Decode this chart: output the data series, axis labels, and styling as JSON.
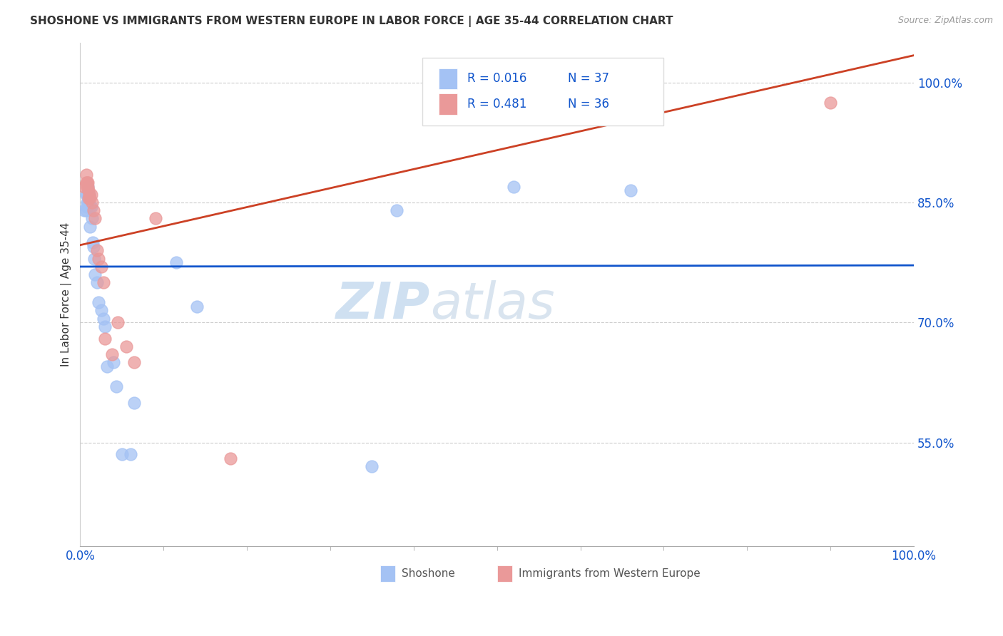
{
  "title": "SHOSHONE VS IMMIGRANTS FROM WESTERN EUROPE IN LABOR FORCE | AGE 35-44 CORRELATION CHART",
  "source": "Source: ZipAtlas.com",
  "ylabel": "In Labor Force | Age 35-44",
  "xlim": [
    0.0,
    1.0
  ],
  "ylim": [
    0.42,
    1.05
  ],
  "yticks": [
    0.55,
    0.7,
    0.85,
    1.0
  ],
  "ytick_labels": [
    "55.0%",
    "70.0%",
    "85.0%",
    "100.0%"
  ],
  "xtick_left": "0.0%",
  "xtick_right": "100.0%",
  "watermark_zip": "ZIP",
  "watermark_atlas": "atlas",
  "legend_R1": "R = 0.016",
  "legend_N1": "N = 37",
  "legend_R2": "R = 0.481",
  "legend_N2": "N = 36",
  "blue_scatter_color": "#a4c2f4",
  "pink_scatter_color": "#ea9999",
  "blue_line_color": "#1155cc",
  "pink_line_color": "#cc4125",
  "axis_label_color": "#1155cc",
  "grid_color": "#cccccc",
  "title_color": "#333333",
  "source_color": "#999999",
  "watermark_zip_color": "#b0cce8",
  "watermark_atlas_color": "#a0bcd8",
  "legend_text_color": "#1155cc",
  "bottom_label_color": "#555555",
  "shoshone_x": [
    0.005,
    0.007,
    0.007,
    0.008,
    0.008,
    0.008,
    0.009,
    0.009,
    0.01,
    0.01,
    0.01,
    0.011,
    0.012,
    0.012,
    0.013,
    0.014,
    0.015,
    0.016,
    0.017,
    0.018,
    0.02,
    0.022,
    0.025,
    0.028,
    0.03,
    0.032,
    0.04,
    0.043,
    0.05,
    0.06,
    0.065,
    0.115,
    0.14,
    0.35,
    0.38,
    0.52,
    0.66
  ],
  "shoshone_y": [
    0.84,
    0.86,
    0.84,
    0.85,
    0.86,
    0.845,
    0.85,
    0.87,
    0.858,
    0.855,
    0.86,
    0.86,
    0.82,
    0.845,
    0.845,
    0.83,
    0.8,
    0.795,
    0.78,
    0.76,
    0.75,
    0.725,
    0.715,
    0.705,
    0.695,
    0.645,
    0.65,
    0.62,
    0.535,
    0.535,
    0.6,
    0.775,
    0.72,
    0.52,
    0.84,
    0.87,
    0.865
  ],
  "euro_x": [
    0.005,
    0.007,
    0.007,
    0.008,
    0.008,
    0.009,
    0.009,
    0.01,
    0.01,
    0.011,
    0.012,
    0.013,
    0.014,
    0.016,
    0.018,
    0.02,
    0.022,
    0.025,
    0.028,
    0.03,
    0.038,
    0.045,
    0.055,
    0.065,
    0.09,
    0.18,
    0.55,
    0.6,
    0.61,
    0.62,
    0.62,
    0.63,
    0.63,
    0.64,
    0.65,
    0.9
  ],
  "euro_y": [
    0.87,
    0.885,
    0.875,
    0.875,
    0.87,
    0.875,
    0.87,
    0.865,
    0.855,
    0.86,
    0.855,
    0.86,
    0.85,
    0.84,
    0.83,
    0.79,
    0.78,
    0.77,
    0.75,
    0.68,
    0.66,
    0.7,
    0.67,
    0.65,
    0.83,
    0.53,
    0.97,
    0.965,
    0.965,
    0.96,
    0.958,
    0.96,
    0.965,
    0.965,
    0.965,
    0.975
  ]
}
